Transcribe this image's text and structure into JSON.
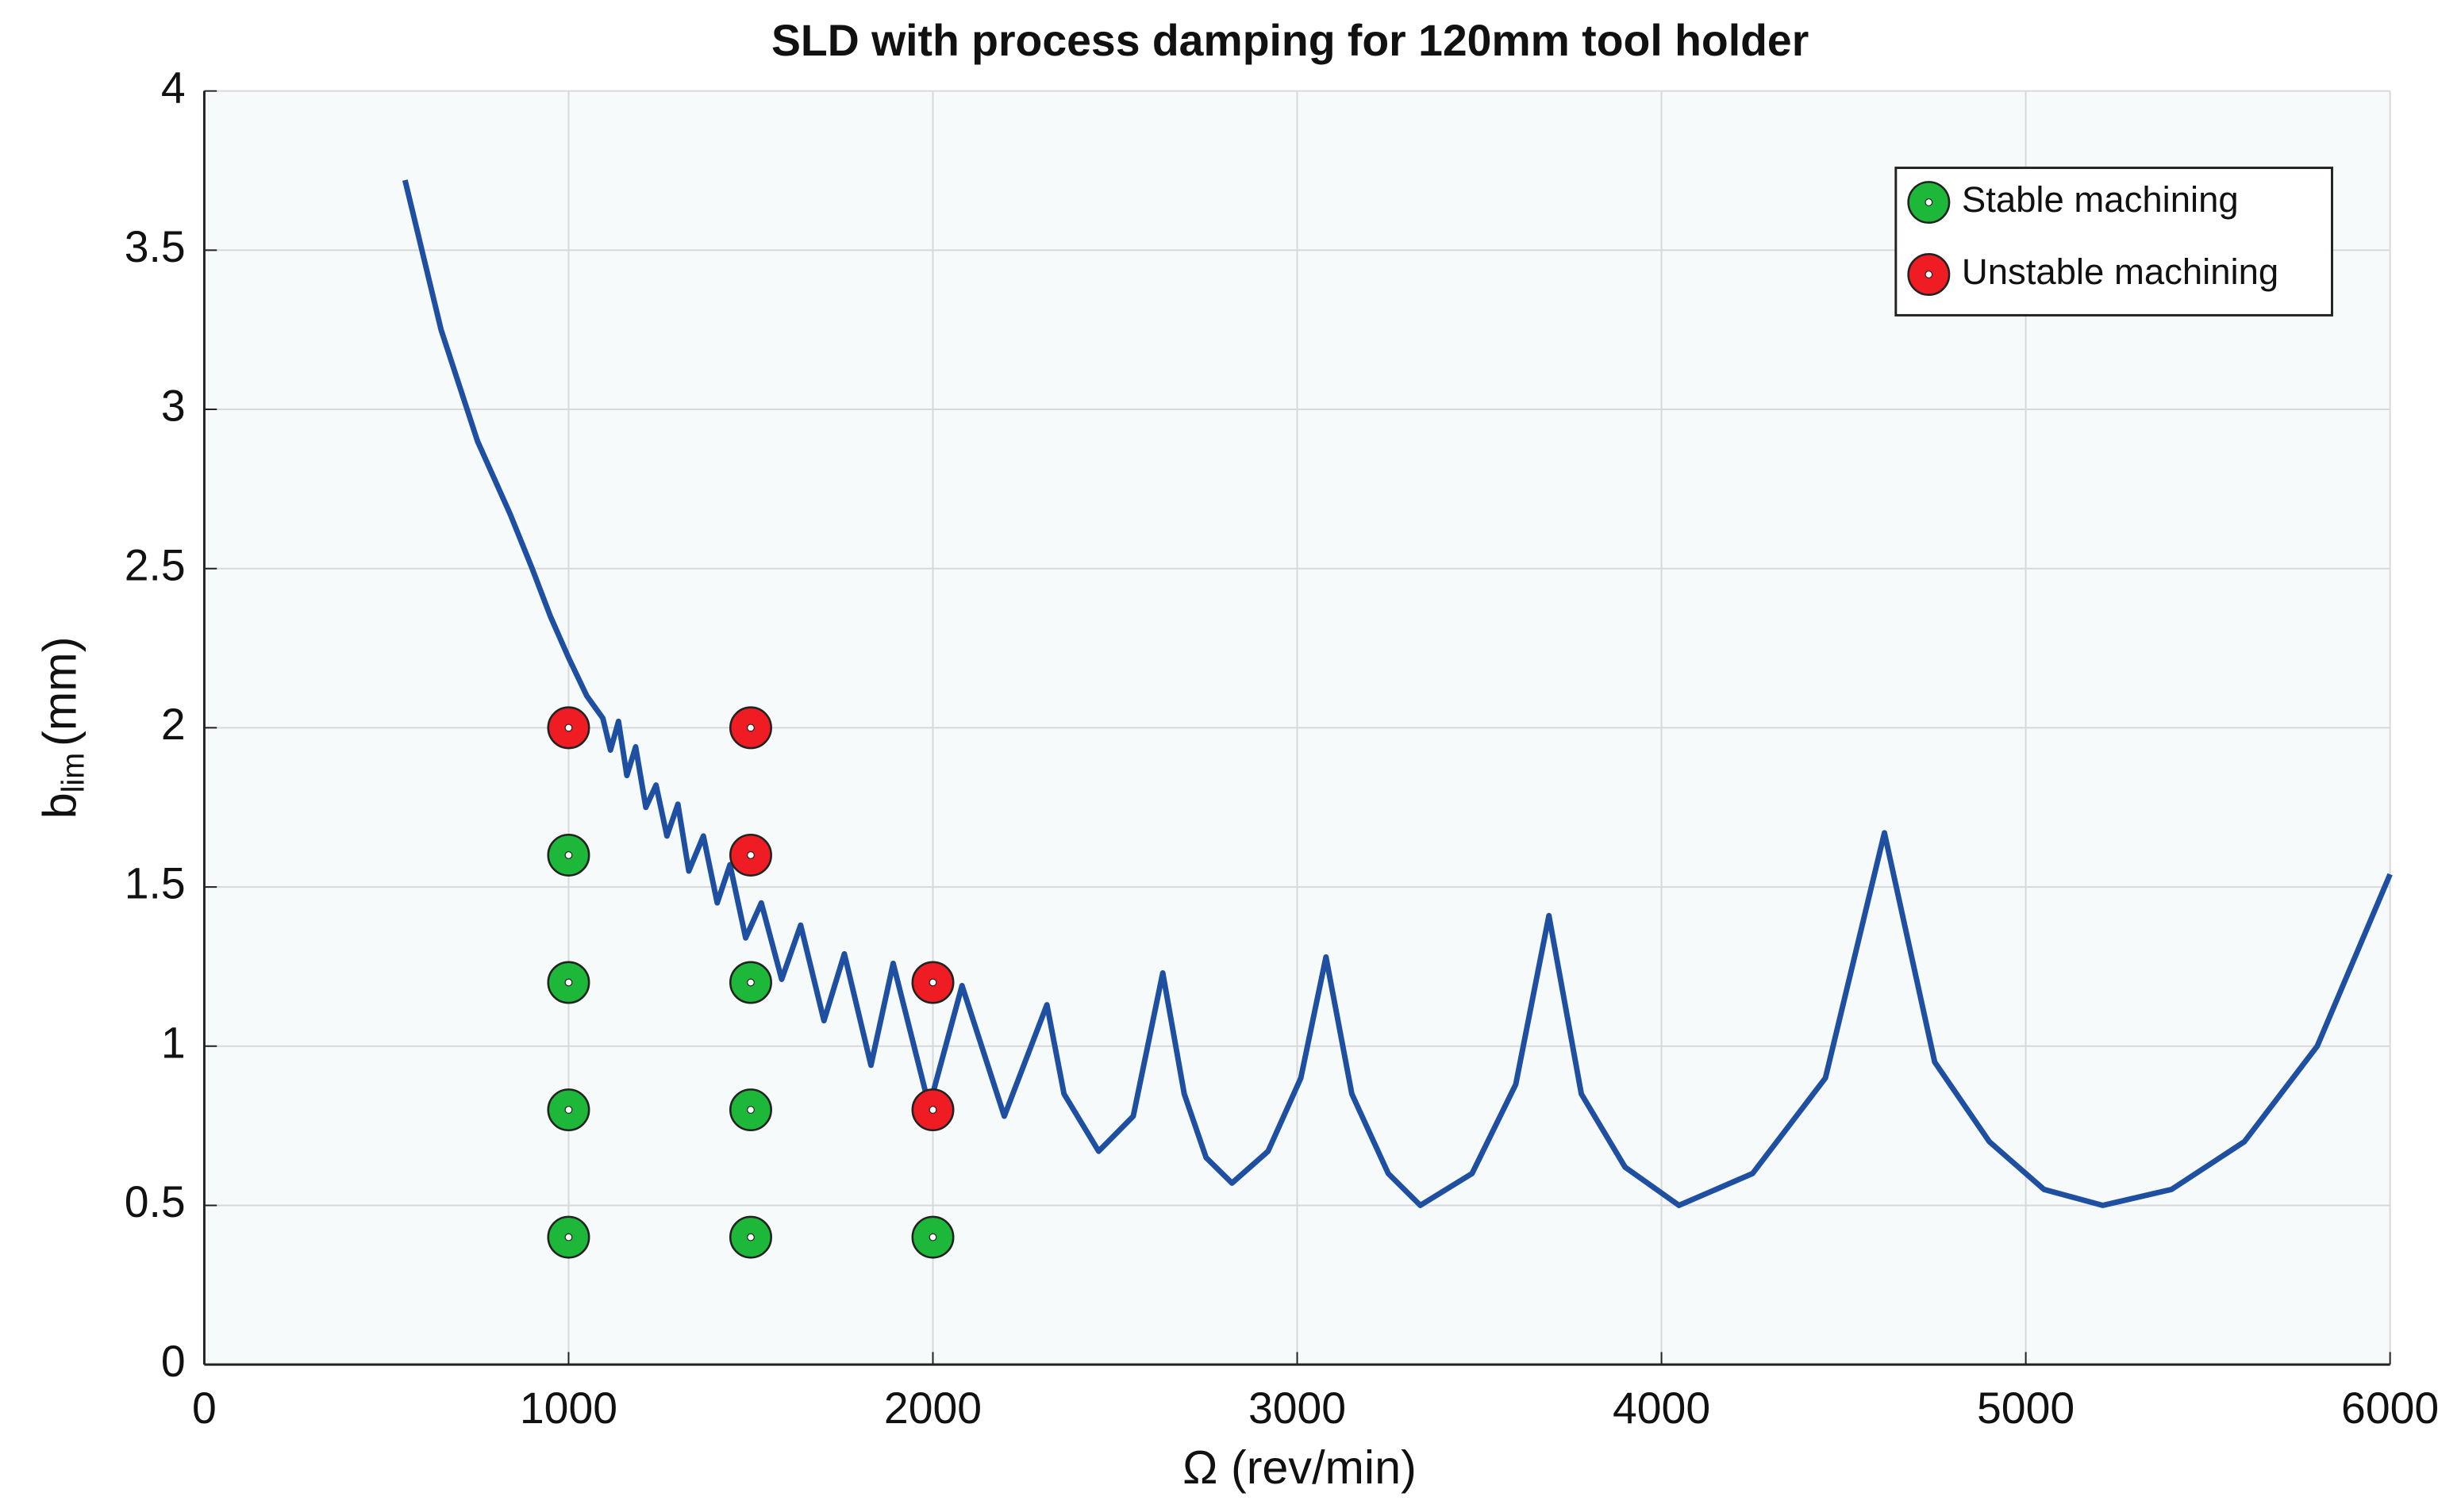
{
  "chart_data": {
    "type": "line",
    "title": "SLD with process damping for 120mm tool holder",
    "xlabel": "Ω (rev/min)",
    "ylabel": {
      "base": "b",
      "sub": "lim",
      "unit": "(mm)"
    },
    "xlim": [
      0,
      6000
    ],
    "xticks": [
      0,
      1000,
      2000,
      3000,
      4000,
      5000,
      6000
    ],
    "ylim": [
      0,
      4
    ],
    "yticks": [
      0,
      0.5,
      1,
      1.5,
      2,
      2.5,
      3,
      3.5,
      4
    ],
    "grid": true,
    "legend": "upper right",
    "series": [
      {
        "type": "line",
        "color": "#1f4fa0",
        "x": [
          551,
          650,
          750,
          840,
          900,
          950,
          1000,
          1050,
          1094,
          1115,
          1137,
          1160,
          1184,
          1212,
          1240,
          1270,
          1300,
          1330,
          1370,
          1408,
          1443,
          1486,
          1529,
          1585,
          1637,
          1701,
          1757,
          1830,
          1891,
          1990,
          2080,
          2196,
          2313,
          2360,
          2455,
          2550,
          2631,
          2690,
          2750,
          2821,
          2920,
          3010,
          3079,
          3150,
          3250,
          3338,
          3480,
          3600,
          3691,
          3780,
          3900,
          4048,
          4250,
          4450,
          4612,
          4750,
          4900,
          5050,
          5211,
          5400,
          5600,
          5800,
          6000
        ],
        "values": [
          3.72,
          3.25,
          2.9,
          2.67,
          2.5,
          2.35,
          2.22,
          2.1,
          2.03,
          1.93,
          2.02,
          1.85,
          1.94,
          1.75,
          1.82,
          1.66,
          1.76,
          1.55,
          1.66,
          1.45,
          1.57,
          1.34,
          1.45,
          1.21,
          1.38,
          1.08,
          1.29,
          0.94,
          1.26,
          0.81,
          1.19,
          0.78,
          1.13,
          0.85,
          0.67,
          0.78,
          1.23,
          0.85,
          0.65,
          0.57,
          0.67,
          0.9,
          1.28,
          0.85,
          0.6,
          0.5,
          0.6,
          0.88,
          1.41,
          0.85,
          0.62,
          0.5,
          0.6,
          0.9,
          1.67,
          0.95,
          0.7,
          0.55,
          0.5,
          0.55,
          0.7,
          1.0,
          1.54
        ]
      },
      {
        "type": "scatter",
        "name": "Stable machining",
        "color": "#1db83a",
        "x": [
          1000,
          1000,
          1000,
          1000,
          1500,
          1500,
          1500,
          2000
        ],
        "values": [
          1.6,
          1.2,
          0.8,
          0.4,
          1.2,
          0.8,
          0.4,
          0.4
        ]
      },
      {
        "type": "scatter",
        "name": "Unstable machining",
        "color": "#f01c24",
        "x": [
          1000,
          1500,
          1500,
          2000,
          2000
        ],
        "values": [
          2,
          2,
          1.6,
          1.2,
          0.8
        ]
      }
    ]
  }
}
